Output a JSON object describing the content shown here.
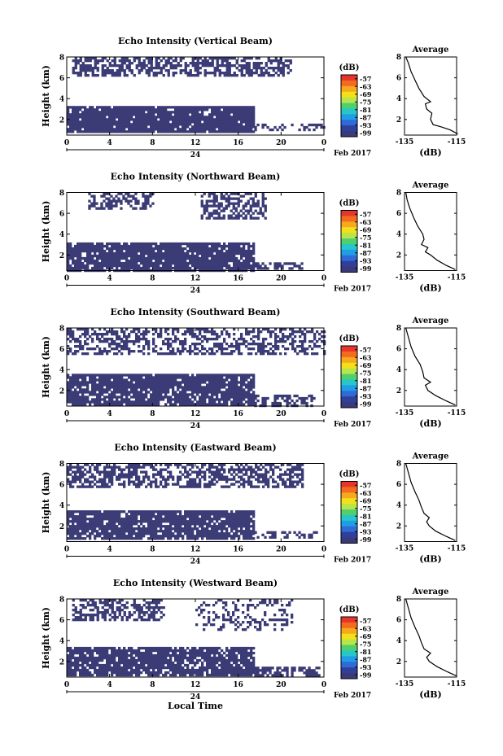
{
  "figure": {
    "xlabel": "Local Time",
    "date_label": "Feb 2017",
    "day_label": "24",
    "colorbar_label": "(dB)",
    "avg_title": "Average",
    "avg_xlabel": "(dB)"
  },
  "colorbar": {
    "ticks": [
      "-57",
      "-63",
      "-69",
      "-75",
      "-81",
      "-87",
      "-93",
      "-99"
    ],
    "colors": [
      "#e8352b",
      "#f26b1f",
      "#f7a81c",
      "#f3e01b",
      "#b7e54b",
      "#4fd06d",
      "#27c6c8",
      "#1f9de6",
      "#2f6bd6",
      "#2f3f9a",
      "#3a3a7a"
    ]
  },
  "chart_data": [
    {
      "type": "heatmap",
      "title": "Echo Intensity (Vertical Beam)",
      "ylabel": "Height (km)",
      "x_ticks": [
        "0",
        "4",
        "8",
        "12",
        "16",
        "20",
        "0"
      ],
      "xlim": [
        0,
        24
      ],
      "y_ticks": [
        "2",
        "4",
        "6",
        "8"
      ],
      "ylim": [
        0.5,
        8
      ],
      "intensity_range_dB": [
        -99,
        -57
      ],
      "regions": [
        {
          "layer": "upper",
          "x_range": [
            0.5,
            21
          ],
          "height_km": [
            6.2,
            8
          ],
          "coverage": 0.62
        },
        {
          "layer": "lower",
          "x_range": [
            0,
            17.5
          ],
          "height_km": [
            0.9,
            3.3
          ],
          "coverage": 0.93
        },
        {
          "layer": "lower",
          "x_range": [
            17.5,
            24
          ],
          "height_km": [
            0.9,
            1.6
          ],
          "coverage": 0.35
        }
      ],
      "average_profile": {
        "x_ticks": [
          "-135",
          "-115"
        ],
        "xlim": [
          -135,
          -115
        ],
        "y_ticks": [
          "2",
          "4",
          "6",
          "8"
        ],
        "ylim": [
          0.5,
          8
        ],
        "x": [
          -114.5,
          -117.5,
          -121,
          -124,
          -125,
          -124.5,
          -126.5,
          -127,
          -125,
          -127.5,
          -129.5,
          -131,
          -132.5,
          -133.5,
          -134.5
        ],
        "y": [
          0.6,
          1.0,
          1.3,
          1.5,
          2.0,
          2.6,
          3.0,
          3.5,
          3.7,
          4.2,
          5.0,
          5.8,
          6.6,
          7.4,
          8.0
        ]
      }
    },
    {
      "type": "heatmap",
      "title": "Echo Intensity (Northward Beam)",
      "ylabel": "Height (km)",
      "x_ticks": [
        "0",
        "4",
        "8",
        "12",
        "16",
        "20",
        "0"
      ],
      "xlim": [
        0,
        24
      ],
      "y_ticks": [
        "2",
        "4",
        "6",
        "8"
      ],
      "ylim": [
        0.5,
        8
      ],
      "intensity_range_dB": [
        -99,
        -57
      ],
      "regions": [
        {
          "layer": "upper",
          "x_range": [
            2,
            8
          ],
          "height_km": [
            6.5,
            8
          ],
          "coverage": 0.5
        },
        {
          "layer": "upper",
          "x_range": [
            12.5,
            18.5
          ],
          "height_km": [
            5.5,
            8
          ],
          "coverage": 0.55
        },
        {
          "layer": "lower",
          "x_range": [
            0,
            17.5
          ],
          "height_km": [
            0.6,
            3.2
          ],
          "coverage": 0.9
        },
        {
          "layer": "lower",
          "x_range": [
            17.5,
            22
          ],
          "height_km": [
            0.6,
            1.3
          ],
          "coverage": 0.7
        }
      ],
      "average_profile": {
        "x_ticks": [
          "-135",
          "-115"
        ],
        "xlim": [
          -135,
          -115
        ],
        "y_ticks": [
          "2",
          "4",
          "6",
          "8"
        ],
        "ylim": [
          0.5,
          8
        ],
        "x": [
          -115.5,
          -119,
          -122.5,
          -125,
          -127,
          -126,
          -128.5,
          -127.5,
          -128,
          -130,
          -131.5,
          -133,
          -134,
          -134.5
        ],
        "y": [
          0.6,
          1.0,
          1.5,
          2.0,
          2.3,
          2.7,
          3.0,
          3.5,
          4.0,
          4.8,
          5.6,
          6.5,
          7.3,
          8.0
        ]
      }
    },
    {
      "type": "heatmap",
      "title": "Echo Intensity (Southward Beam)",
      "ylabel": "Height (km)",
      "x_ticks": [
        "0",
        "4",
        "8",
        "12",
        "16",
        "20",
        "0"
      ],
      "xlim": [
        0,
        24
      ],
      "y_ticks": [
        "2",
        "4",
        "6",
        "8"
      ],
      "ylim": [
        0.5,
        8
      ],
      "intensity_range_dB": [
        -99,
        -57
      ],
      "regions": [
        {
          "layer": "upper",
          "x_range": [
            0,
            24
          ],
          "height_km": [
            5.5,
            8
          ],
          "coverage": 0.5
        },
        {
          "layer": "lower",
          "x_range": [
            0,
            17.5
          ],
          "height_km": [
            0.6,
            3.6
          ],
          "coverage": 0.88
        },
        {
          "layer": "lower",
          "x_range": [
            17.5,
            23
          ],
          "height_km": [
            0.6,
            1.6
          ],
          "coverage": 0.6
        }
      ],
      "average_profile": {
        "x_ticks": [
          "-135",
          "-115"
        ],
        "xlim": [
          -135,
          -115
        ],
        "y_ticks": [
          "2",
          "4",
          "6",
          "8"
        ],
        "ylim": [
          0.5,
          8
        ],
        "x": [
          -115.5,
          -119,
          -123,
          -126,
          -127,
          -125,
          -127.5,
          -128,
          -129,
          -131,
          -132.5,
          -133.5,
          -134.5
        ],
        "y": [
          0.6,
          1.0,
          1.5,
          2.0,
          2.5,
          2.8,
          3.2,
          3.8,
          4.5,
          5.3,
          6.2,
          7.1,
          8.0
        ]
      }
    },
    {
      "type": "heatmap",
      "title": "Echo Intensity (Eastward Beam)",
      "ylabel": "Height (km)",
      "x_ticks": [
        "0",
        "4",
        "8",
        "12",
        "16",
        "20",
        "0"
      ],
      "xlim": [
        0,
        24
      ],
      "y_ticks": [
        "2",
        "4",
        "6",
        "8"
      ],
      "ylim": [
        0.5,
        8
      ],
      "intensity_range_dB": [
        -99,
        -57
      ],
      "regions": [
        {
          "layer": "upper",
          "x_range": [
            0,
            22
          ],
          "height_km": [
            5.8,
            8
          ],
          "coverage": 0.6
        },
        {
          "layer": "lower",
          "x_range": [
            0,
            17.5
          ],
          "height_km": [
            0.8,
            3.5
          ],
          "coverage": 0.88
        },
        {
          "layer": "lower",
          "x_range": [
            17.5,
            23.5
          ],
          "height_km": [
            0.8,
            1.5
          ],
          "coverage": 0.35
        }
      ],
      "average_profile": {
        "x_ticks": [
          "-135",
          "-115"
        ],
        "xlim": [
          -135,
          -115
        ],
        "y_ticks": [
          "2",
          "4",
          "6",
          "8"
        ],
        "ylim": [
          0.5,
          8
        ],
        "x": [
          -115.5,
          -119,
          -123,
          -125.5,
          -126.5,
          -125.5,
          -127.5,
          -128.5,
          -129.5,
          -131,
          -132.5,
          -133.5,
          -134.5
        ],
        "y": [
          0.6,
          1.0,
          1.5,
          2.0,
          2.4,
          2.8,
          3.2,
          3.8,
          4.5,
          5.3,
          6.2,
          7.1,
          8.0
        ]
      }
    },
    {
      "type": "heatmap",
      "title": "Echo Intensity (Westward Beam)",
      "ylabel": "Height (km)",
      "x_ticks": [
        "0",
        "4",
        "8",
        "12",
        "16",
        "20",
        "0"
      ],
      "xlim": [
        0,
        24
      ],
      "y_ticks": [
        "2",
        "4",
        "6",
        "8"
      ],
      "ylim": [
        0.5,
        8
      ],
      "intensity_range_dB": [
        -99,
        -57
      ],
      "regions": [
        {
          "layer": "upper",
          "x_range": [
            0.5,
            9
          ],
          "height_km": [
            6,
            8
          ],
          "coverage": 0.55
        },
        {
          "layer": "upper",
          "x_range": [
            12,
            21
          ],
          "height_km": [
            5,
            8
          ],
          "coverage": 0.3
        },
        {
          "layer": "lower",
          "x_range": [
            0,
            17.5
          ],
          "height_km": [
            0.6,
            3.4
          ],
          "coverage": 0.85
        },
        {
          "layer": "lower",
          "x_range": [
            17.5,
            23.5
          ],
          "height_km": [
            0.6,
            1.5
          ],
          "coverage": 0.6
        }
      ],
      "average_profile": {
        "x_ticks": [
          "-135",
          "-115"
        ],
        "xlim": [
          -135,
          -115
        ],
        "y_ticks": [
          "2",
          "4",
          "6",
          "8"
        ],
        "ylim": [
          0.5,
          8
        ],
        "x": [
          -115,
          -118.5,
          -122.5,
          -125.5,
          -126.5,
          -125,
          -127.5,
          -128.5,
          -129.5,
          -131,
          -132.5,
          -133.5,
          -134.5
        ],
        "y": [
          0.6,
          1.0,
          1.5,
          2.0,
          2.4,
          2.8,
          3.2,
          3.8,
          4.5,
          5.3,
          6.2,
          7.1,
          8.0
        ]
      }
    }
  ]
}
